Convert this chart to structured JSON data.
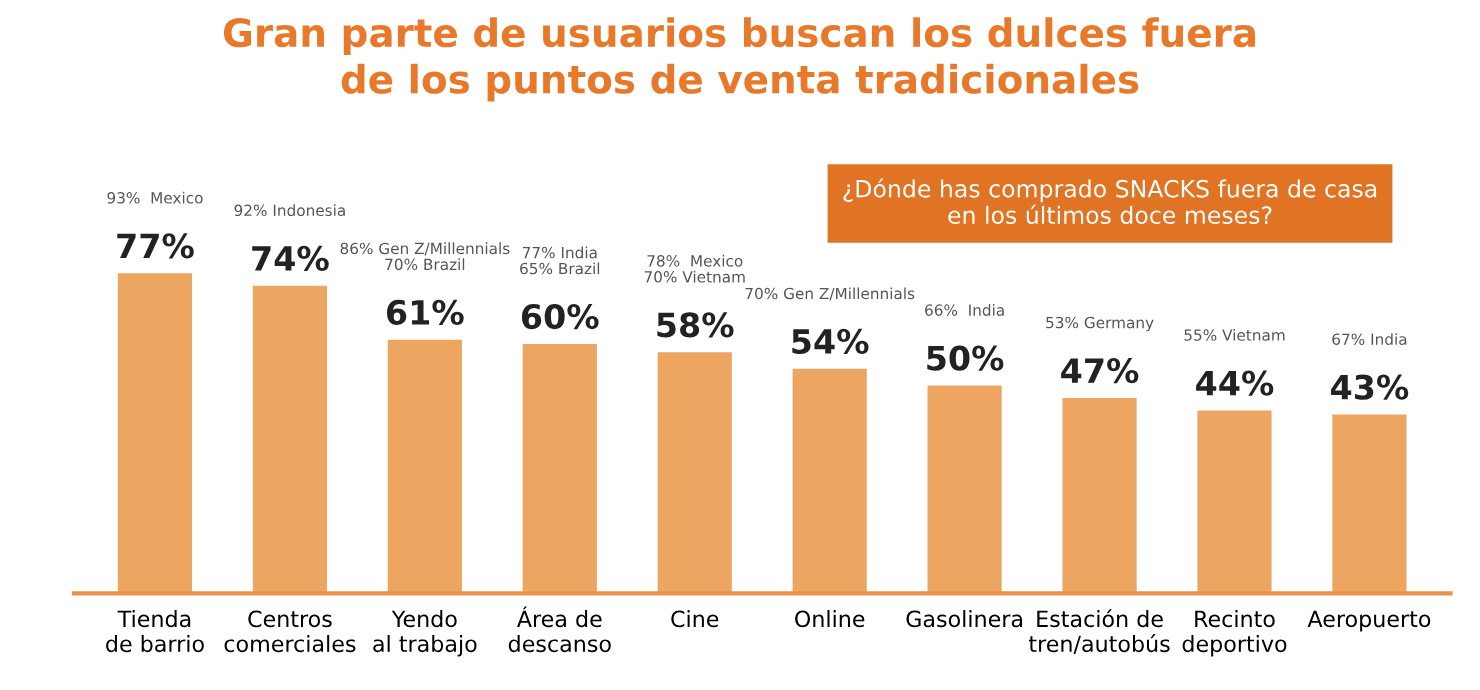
{
  "chart_data": {
    "type": "bar",
    "title": "Gran parte de usuarios buscan los dulces fuera\nde los puntos de venta tradicionales",
    "subtitle": "¿Dónde has comprado SNACKS fuera de casa\nen los últimos doce meses?",
    "categories": [
      "Tienda\nde barrio",
      "Centros\ncomerciales",
      "Yendo\nal trabajo",
      "Área de\ndescanso",
      "Cine",
      "Online",
      "Gasolinera",
      "Estación de\ntren/autobús",
      "Recinto\ndeportivo",
      "Aeropuerto"
    ],
    "values": [
      77,
      74,
      61,
      60,
      58,
      54,
      50,
      47,
      44,
      43
    ],
    "color": "#eda662",
    "value_labels": [
      "77%",
      "74%",
      "61%",
      "60%",
      "58%",
      "54%",
      "50%",
      "47%",
      "44%",
      "43%"
    ],
    "annotations": [
      "93%  Mexico",
      "92% Indonesia",
      "86% Gen Z/Millennials\n70% Brazil",
      "77% India\n65% Brazil",
      "78%  Mexico\n70% Vietnam",
      "70% Gen Z/Millennials",
      "66%  India",
      "53% Germany",
      "55% Vietnam",
      "67% India"
    ],
    "grid": false,
    "legend": false,
    "tick_labels": "x"
  }
}
